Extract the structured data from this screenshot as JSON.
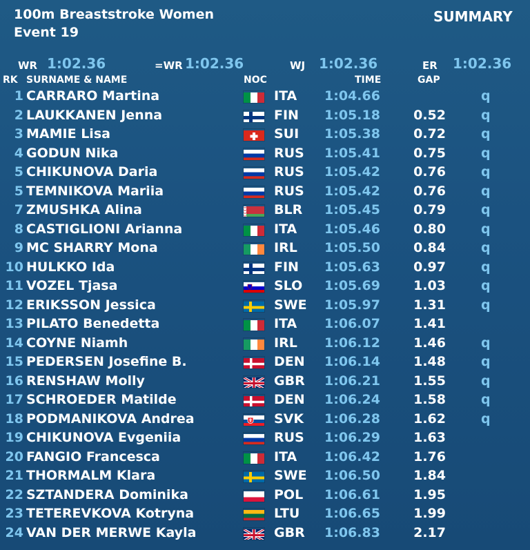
{
  "header": {
    "event_title": "100m Breaststroke Women",
    "event_number": "Event 19",
    "summary_label": "SUMMARY"
  },
  "records": {
    "wr_label": "WR",
    "wr_value": "1:02.36",
    "ewr_label": "=WR",
    "ewr_value": "1:02.36",
    "wj_label": "WJ",
    "wj_value": "1:02.36",
    "er_label": "ER",
    "er_value": "1:02.36"
  },
  "columns": {
    "rank": "RK",
    "name": "SURNAME & NAME",
    "noc": "NOC",
    "time": "TIME",
    "gap": "GAP"
  },
  "results": [
    {
      "rank": "1",
      "surname": "CARRARO",
      "given": "Martina",
      "noc": "ITA",
      "flag": "it",
      "time": "1:04.66",
      "gap": "",
      "q": "q"
    },
    {
      "rank": "2",
      "surname": "LAUKKANEN",
      "given": "Jenna",
      "noc": "FIN",
      "flag": "fi",
      "time": "1:05.18",
      "gap": "0.52",
      "q": "q"
    },
    {
      "rank": "3",
      "surname": "MAMIE",
      "given": "Lisa",
      "noc": "SUI",
      "flag": "ch",
      "time": "1:05.38",
      "gap": "0.72",
      "q": "q"
    },
    {
      "rank": "4",
      "surname": "GODUN",
      "given": "Nika",
      "noc": "RUS",
      "flag": "ru",
      "time": "1:05.41",
      "gap": "0.75",
      "q": "q"
    },
    {
      "rank": "5",
      "surname": "CHIKUNOVA",
      "given": "Daria",
      "noc": "RUS",
      "flag": "ru",
      "time": "1:05.42",
      "gap": "0.76",
      "q": "q"
    },
    {
      "rank": "5",
      "surname": "TEMNIKOVA",
      "given": "Mariia",
      "noc": "RUS",
      "flag": "ru",
      "time": "1:05.42",
      "gap": "0.76",
      "q": "q"
    },
    {
      "rank": "7",
      "surname": "ZMUSHKA",
      "given": "Alina",
      "noc": "BLR",
      "flag": "by",
      "time": "1:05.45",
      "gap": "0.79",
      "q": "q"
    },
    {
      "rank": "8",
      "surname": "CASTIGLIONI",
      "given": "Arianna",
      "noc": "ITA",
      "flag": "it",
      "time": "1:05.46",
      "gap": "0.80",
      "q": "q"
    },
    {
      "rank": "9",
      "surname": "MC SHARRY",
      "given": "Mona",
      "noc": "IRL",
      "flag": "ie",
      "time": "1:05.50",
      "gap": "0.84",
      "q": "q"
    },
    {
      "rank": "10",
      "surname": "HULKKO",
      "given": "Ida",
      "noc": "FIN",
      "flag": "fi",
      "time": "1:05.63",
      "gap": "0.97",
      "q": "q"
    },
    {
      "rank": "11",
      "surname": "VOZEL",
      "given": "Tjasa",
      "noc": "SLO",
      "flag": "si",
      "time": "1:05.69",
      "gap": "1.03",
      "q": "q"
    },
    {
      "rank": "12",
      "surname": "ERIKSSON",
      "given": "Jessica",
      "noc": "SWE",
      "flag": "se",
      "time": "1:05.97",
      "gap": "1.31",
      "q": "q"
    },
    {
      "rank": "13",
      "surname": "PILATO",
      "given": "Benedetta",
      "noc": "ITA",
      "flag": "it",
      "time": "1:06.07",
      "gap": "1.41",
      "q": ""
    },
    {
      "rank": "14",
      "surname": "COYNE",
      "given": "Niamh",
      "noc": "IRL",
      "flag": "ie",
      "time": "1:06.12",
      "gap": "1.46",
      "q": "q"
    },
    {
      "rank": "15",
      "surname": "PEDERSEN",
      "given": "Josefine B.",
      "noc": "DEN",
      "flag": "dk",
      "time": "1:06.14",
      "gap": "1.48",
      "q": "q"
    },
    {
      "rank": "16",
      "surname": "RENSHAW",
      "given": "Molly",
      "noc": "GBR",
      "flag": "gb",
      "time": "1:06.21",
      "gap": "1.55",
      "q": "q"
    },
    {
      "rank": "17",
      "surname": "SCHROEDER",
      "given": "Matilde",
      "noc": "DEN",
      "flag": "dk",
      "time": "1:06.24",
      "gap": "1.58",
      "q": "q"
    },
    {
      "rank": "18",
      "surname": "PODMANIKOVA",
      "given": "Andrea",
      "noc": "SVK",
      "flag": "sk",
      "time": "1:06.28",
      "gap": "1.62",
      "q": "q"
    },
    {
      "rank": "19",
      "surname": "CHIKUNOVA",
      "given": "Evgeniia",
      "noc": "RUS",
      "flag": "ru",
      "time": "1:06.29",
      "gap": "1.63",
      "q": ""
    },
    {
      "rank": "20",
      "surname": "FANGIO",
      "given": "Francesca",
      "noc": "ITA",
      "flag": "it",
      "time": "1:06.42",
      "gap": "1.76",
      "q": ""
    },
    {
      "rank": "21",
      "surname": "THORMALM",
      "given": "Klara",
      "noc": "SWE",
      "flag": "se",
      "time": "1:06.50",
      "gap": "1.84",
      "q": ""
    },
    {
      "rank": "22",
      "surname": "SZTANDERA",
      "given": "Dominika",
      "noc": "POL",
      "flag": "pl",
      "time": "1:06.61",
      "gap": "1.95",
      "q": ""
    },
    {
      "rank": "23",
      "surname": "TETEREVKOVA",
      "given": "Kotryna",
      "noc": "LTU",
      "flag": "lt",
      "time": "1:06.65",
      "gap": "1.99",
      "q": ""
    },
    {
      "rank": "24",
      "surname": "VAN DER MERWE",
      "given": "Kayla",
      "noc": "GBR",
      "flag": "gb",
      "time": "1:06.83",
      "gap": "2.17",
      "q": ""
    }
  ]
}
